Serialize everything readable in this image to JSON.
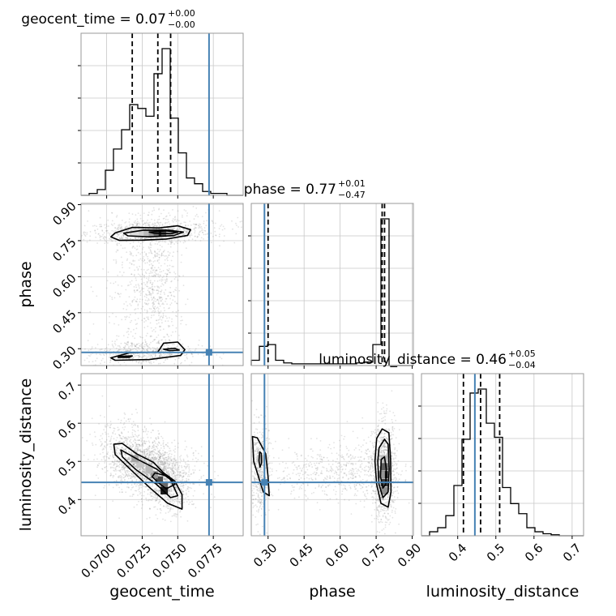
{
  "chart_data": {
    "type": "corner",
    "parameters": [
      "geocent_time",
      "phase",
      "luminosity_distance"
    ],
    "axis_labels": {
      "geocent_time": "geocent_time",
      "phase": "phase",
      "luminosity_distance": "luminosity_distance"
    },
    "ranges": {
      "geocent_time": [
        0.0682,
        0.0796
      ],
      "phase": [
        0.23,
        0.905
      ],
      "luminosity_distance": [
        0.305,
        0.73
      ]
    },
    "ticks": {
      "geocent_time": [
        0.07,
        0.0725,
        0.075,
        0.0775
      ],
      "phase": [
        0.3,
        0.45,
        0.6,
        0.75,
        0.9
      ],
      "luminosity_distance": [
        0.4,
        0.5,
        0.6,
        0.7
      ]
    },
    "tick_labels": {
      "geocent_time": [
        "0.0700",
        "0.0725",
        "0.0750",
        "0.0775"
      ],
      "phase": [
        "0.30",
        "0.45",
        "0.60",
        "0.75",
        "0.90"
      ],
      "luminosity_distance": [
        "0.4",
        "0.5",
        "0.6",
        "0.7"
      ]
    },
    "injection": {
      "geocent_time": 0.0772,
      "phase": 0.285,
      "luminosity_distance": 0.445
    },
    "titles": [
      {
        "param": "geocent_time",
        "label": "geocent_time",
        "median": "0.07",
        "plus": "+0.00",
        "minus": "−0.00"
      },
      {
        "param": "phase",
        "label": "phase",
        "median": "0.77",
        "plus": "+0.01",
        "minus": "−0.47"
      },
      {
        "param": "luminosity_distance",
        "label": "luminosity_distance",
        "median": "0.46",
        "plus": "+0.05",
        "minus": "−0.04"
      }
    ],
    "quantiles": {
      "geocent_time": [
        0.0718,
        0.0736,
        0.0745
      ],
      "phase": [
        0.3,
        0.775,
        0.785
      ],
      "luminosity_distance": [
        0.415,
        0.46,
        0.51
      ]
    },
    "histograms": {
      "geocent_time": {
        "bins": [
          0.0682,
          0.06877,
          0.06934,
          0.06991,
          0.07048,
          0.07105,
          0.07162,
          0.07219,
          0.07276,
          0.07333,
          0.0739,
          0.07447,
          0.07504,
          0.07561,
          0.07618,
          0.07675,
          0.07732,
          0.07789,
          0.07846,
          0.07903,
          0.0796
        ],
        "counts": [
          0,
          0.01,
          0.03,
          0.13,
          0.24,
          0.34,
          0.47,
          0.45,
          0.41,
          0.63,
          0.76,
          0.4,
          0.22,
          0.09,
          0.06,
          0.02,
          0.01,
          0.01,
          0,
          0
        ]
      },
      "phase": {
        "bins": [
          0.23,
          0.26375,
          0.2975,
          0.33125,
          0.365,
          0.39875,
          0.4325,
          0.46625,
          0.5,
          0.53375,
          0.5675,
          0.60125,
          0.635,
          0.66875,
          0.7025,
          0.73625,
          0.77,
          0.80375,
          0.8375,
          0.87125,
          0.905
        ],
        "counts": [
          0.03,
          0.11,
          0.12,
          0.03,
          0.015,
          0.01,
          0.01,
          0.01,
          0.01,
          0.01,
          0.01,
          0.01,
          0.01,
          0.015,
          0.02,
          0.12,
          0.84,
          0,
          0,
          0
        ]
      },
      "luminosity_distance": {
        "bins": [
          0.305,
          0.32625,
          0.3475,
          0.36875,
          0.39,
          0.41125,
          0.4325,
          0.45375,
          0.475,
          0.49625,
          0.5175,
          0.53875,
          0.56,
          0.58125,
          0.6025,
          0.62375,
          0.645,
          0.66625,
          0.6875,
          0.70875,
          0.73
        ],
        "counts": [
          0,
          0.02,
          0.04,
          0.1,
          0.25,
          0.48,
          0.71,
          0.73,
          0.56,
          0.49,
          0.24,
          0.16,
          0.11,
          0.04,
          0.02,
          0.01,
          0.005,
          0,
          0,
          0
        ]
      }
    },
    "contours": {
      "phase_vs_geocent_time": [
        [
          [
            0.0706,
            0.782
          ],
          [
            0.0718,
            0.805
          ],
          [
            0.0737,
            0.803
          ],
          [
            0.075,
            0.812
          ],
          [
            0.0759,
            0.796
          ],
          [
            0.0757,
            0.772
          ],
          [
            0.0742,
            0.757
          ],
          [
            0.0725,
            0.752
          ],
          [
            0.0709,
            0.751
          ],
          [
            0.0703,
            0.766
          ]
        ],
        [
          [
            0.0712,
            0.781
          ],
          [
            0.0726,
            0.794
          ],
          [
            0.0744,
            0.793
          ],
          [
            0.0754,
            0.786
          ],
          [
            0.0747,
            0.771
          ],
          [
            0.073,
            0.766
          ],
          [
            0.0715,
            0.77
          ]
        ],
        [
          [
            0.073,
            0.786
          ],
          [
            0.0742,
            0.791
          ],
          [
            0.075,
            0.785
          ],
          [
            0.0745,
            0.779
          ],
          [
            0.0733,
            0.781
          ]
        ],
        [
          [
            0.0703,
            0.262
          ],
          [
            0.0716,
            0.283
          ],
          [
            0.0736,
            0.286
          ],
          [
            0.074,
            0.323
          ],
          [
            0.075,
            0.328
          ],
          [
            0.0755,
            0.296
          ],
          [
            0.0752,
            0.272
          ],
          [
            0.073,
            0.255
          ],
          [
            0.0706,
            0.252
          ]
        ],
        [
          [
            0.0709,
            0.268
          ],
          [
            0.0718,
            0.27
          ],
          [
            0.0716,
            0.264
          ],
          [
            0.0708,
            0.264
          ]
        ],
        [
          [
            0.074,
            0.298
          ],
          [
            0.0748,
            0.302
          ],
          [
            0.0751,
            0.294
          ],
          [
            0.0744,
            0.292
          ]
        ]
      ],
      "luminosity_distance_vs_geocent_time": [
        [
          [
            0.0705,
            0.545
          ],
          [
            0.0711,
            0.547
          ],
          [
            0.0721,
            0.52
          ],
          [
            0.0733,
            0.497
          ],
          [
            0.074,
            0.47
          ],
          [
            0.0748,
            0.448
          ],
          [
            0.0753,
            0.413
          ],
          [
            0.0753,
            0.375
          ],
          [
            0.0743,
            0.39
          ],
          [
            0.073,
            0.432
          ],
          [
            0.0717,
            0.478
          ],
          [
            0.0706,
            0.518
          ]
        ],
        [
          [
            0.071,
            0.53
          ],
          [
            0.0722,
            0.505
          ],
          [
            0.0735,
            0.48
          ],
          [
            0.0745,
            0.452
          ],
          [
            0.075,
            0.41
          ],
          [
            0.0745,
            0.405
          ],
          [
            0.0735,
            0.44
          ],
          [
            0.072,
            0.48
          ],
          [
            0.0711,
            0.512
          ]
        ],
        [
          [
            0.0734,
            0.47
          ],
          [
            0.0744,
            0.46
          ],
          [
            0.0748,
            0.44
          ],
          [
            0.0742,
            0.428
          ],
          [
            0.0736,
            0.445
          ],
          [
            0.0732,
            0.46
          ]
        ]
      ],
      "luminosity_distance_vs_phase": [
        [
          [
            0.235,
            0.565
          ],
          [
            0.255,
            0.562
          ],
          [
            0.29,
            0.52
          ],
          [
            0.3,
            0.46
          ],
          [
            0.305,
            0.41
          ],
          [
            0.28,
            0.42
          ],
          [
            0.255,
            0.47
          ],
          [
            0.24,
            0.5
          ]
        ],
        [
          [
            0.265,
            0.525
          ],
          [
            0.272,
            0.521
          ],
          [
            0.273,
            0.495
          ],
          [
            0.266,
            0.485
          ],
          [
            0.262,
            0.502
          ]
        ],
        [
          [
            0.752,
            0.56
          ],
          [
            0.775,
            0.585
          ],
          [
            0.803,
            0.575
          ],
          [
            0.81,
            0.505
          ],
          [
            0.812,
            0.42
          ],
          [
            0.8,
            0.38
          ],
          [
            0.77,
            0.39
          ],
          [
            0.752,
            0.44
          ],
          [
            0.745,
            0.5
          ]
        ],
        [
          [
            0.762,
            0.535
          ],
          [
            0.785,
            0.558
          ],
          [
            0.8,
            0.545
          ],
          [
            0.804,
            0.48
          ],
          [
            0.8,
            0.42
          ],
          [
            0.778,
            0.405
          ],
          [
            0.762,
            0.44
          ],
          [
            0.757,
            0.5
          ]
        ],
        [
          [
            0.771,
            0.505
          ],
          [
            0.785,
            0.512
          ],
          [
            0.792,
            0.48
          ],
          [
            0.79,
            0.44
          ],
          [
            0.778,
            0.43
          ],
          [
            0.768,
            0.46
          ]
        ]
      ]
    },
    "density_cells": {
      "phase_vs_geocent_time": [
        [
          0.0737,
          0.782,
          1.0
        ],
        [
          0.0734,
          0.782,
          0.65
        ],
        [
          0.07305,
          0.782,
          0.45
        ],
        [
          0.0727,
          0.782,
          0.3
        ],
        [
          0.07235,
          0.782,
          0.2
        ],
        [
          0.072,
          0.782,
          0.15
        ],
        [
          0.0741,
          0.782,
          0.75
        ],
        [
          0.07445,
          0.782,
          0.35
        ]
      ],
      "luminosity_distance_vs_geocent_time": [
        [
          0.0737,
          0.451,
          0.8
        ],
        [
          0.07405,
          0.437,
          0.65
        ],
        [
          0.07405,
          0.423,
          1.0
        ],
        [
          0.07335,
          0.465,
          0.45
        ],
        [
          0.073,
          0.479,
          0.3
        ],
        [
          0.07235,
          0.493,
          0.25
        ],
        [
          0.072,
          0.507,
          0.4
        ]
      ],
      "luminosity_distance_vs_phase": [
        [
          0.784,
          0.465,
          1.0
        ],
        [
          0.784,
          0.444,
          0.85
        ],
        [
          0.784,
          0.486,
          0.7
        ],
        [
          0.784,
          0.423,
          0.5
        ],
        [
          0.771,
          0.465,
          0.45
        ],
        [
          0.784,
          0.507,
          0.3
        ],
        [
          0.268,
          0.507,
          0.25
        ]
      ]
    },
    "scatter_clusters": {
      "phase_vs_geocent_time": [
        [
          0.073,
          0.785,
          0.0022,
          0.022,
          700
        ],
        [
          0.0735,
          0.55,
          0.0008,
          0.14,
          500
        ],
        [
          0.072,
          0.55,
          0.0012,
          0.16,
          250
        ],
        [
          0.0725,
          0.285,
          0.002,
          0.025,
          500
        ],
        [
          0.0748,
          0.82,
          0.0025,
          0.035,
          150
        ]
      ],
      "luminosity_distance_vs_geocent_time": [
        [
          0.0727,
          0.49,
          0.0012,
          0.03,
          1200
        ],
        [
          0.0744,
          0.43,
          0.0007,
          0.03,
          500
        ],
        [
          0.0712,
          0.55,
          0.0012,
          0.04,
          300
        ],
        [
          0.0738,
          0.46,
          0.0018,
          0.045,
          300
        ]
      ],
      "luminosity_distance_vs_phase": [
        [
          0.785,
          0.47,
          0.025,
          0.065,
          900
        ],
        [
          0.265,
          0.48,
          0.02,
          0.06,
          500
        ],
        [
          0.54,
          0.47,
          0.15,
          0.035,
          450
        ],
        [
          0.7,
          0.49,
          0.06,
          0.05,
          150
        ]
      ]
    }
  }
}
